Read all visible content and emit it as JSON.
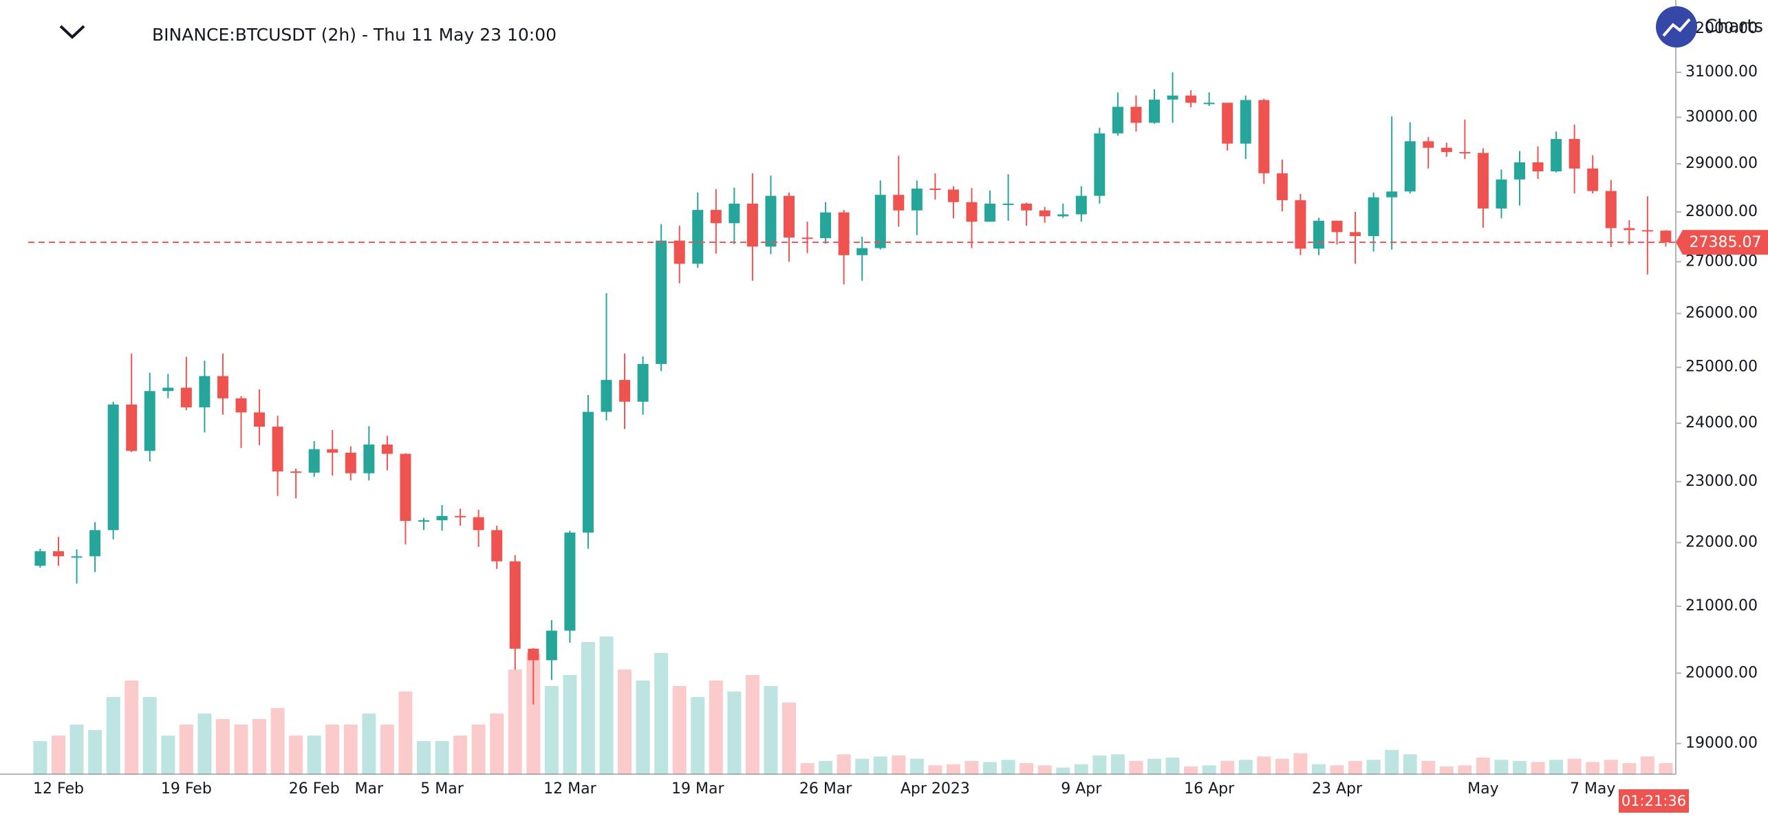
{
  "chart_data": {
    "type": "candlestick",
    "title": "BINANCE:BTCUSDT (2h) - Thu 11 May 23 10:00",
    "logo_text": "Charts",
    "countdown": "01:21:36",
    "last_price": 27385.07,
    "up_color": "#26a69a",
    "down_color": "#ef5350",
    "log_scale": true,
    "grid": false,
    "ylim": [
      18580,
      32680
    ],
    "yticks": [
      {
        "value": 19000,
        "label": "19000.00"
      },
      {
        "value": 20000,
        "label": "20000.00"
      },
      {
        "value": 21000,
        "label": "21000.00"
      },
      {
        "value": 22000,
        "label": "22000.00"
      },
      {
        "value": 23000,
        "label": "23000.00"
      },
      {
        "value": 24000,
        "label": "24000.00"
      },
      {
        "value": 25000,
        "label": "25000.00"
      },
      {
        "value": 26000,
        "label": "26000.00"
      },
      {
        "value": 27000,
        "label": "27000.00"
      },
      {
        "value": 28000,
        "label": "28000.00"
      },
      {
        "value": 29000,
        "label": "29000.00"
      },
      {
        "value": 30000,
        "label": "30000.00"
      },
      {
        "value": 31000,
        "label": "31000.00"
      },
      {
        "value": 32000,
        "label": "32000.00"
      }
    ],
    "categories": [
      null,
      "12 Feb",
      null,
      null,
      null,
      null,
      null,
      null,
      "19 Feb",
      null,
      null,
      null,
      null,
      null,
      null,
      "26 Feb",
      null,
      null,
      "Mar",
      null,
      null,
      null,
      "5 Mar",
      null,
      null,
      null,
      null,
      null,
      null,
      "12 Mar",
      null,
      null,
      null,
      null,
      null,
      null,
      "19 Mar",
      null,
      null,
      null,
      null,
      null,
      null,
      "26 Mar",
      null,
      null,
      null,
      null,
      null,
      "Apr 2023",
      null,
      null,
      null,
      null,
      null,
      null,
      null,
      "9 Apr",
      null,
      null,
      null,
      null,
      null,
      null,
      "16 Apr",
      null,
      null,
      null,
      null,
      null,
      null,
      "23 Apr",
      null,
      null,
      null,
      null,
      null,
      null,
      null,
      "May",
      null,
      null,
      null,
      null,
      null,
      "7 May",
      null,
      null,
      null,
      null
    ],
    "open": [
      21630,
      21860,
      21780,
      21780,
      22200,
      24330,
      23520,
      24570,
      24630,
      24280,
      24840,
      24440,
      24190,
      23940,
      23170,
      23150,
      23550,
      23490,
      23140,
      23630,
      23470,
      22350,
      22360,
      22430,
      22410,
      22200,
      21700,
      20360,
      20190,
      20630,
      22160,
      24200,
      24770,
      24380,
      25060,
      27420,
      26960,
      28040,
      27770,
      28170,
      27300,
      28330,
      27480,
      27470,
      27990,
      27130,
      27270,
      28350,
      28030,
      28480,
      28460,
      28200,
      27800,
      28170,
      28170,
      28030,
      27910,
      27950,
      28330,
      29650,
      30230,
      29880,
      30390,
      30480,
      30320,
      30320,
      29430,
      30380,
      28800,
      28240,
      27260,
      27820,
      27590,
      27510,
      28300,
      28420,
      29480,
      29340,
      29250,
      29230,
      28070,
      28670,
      29030,
      28840,
      29530,
      28900,
      28430,
      27670,
      27630,
      27620
    ],
    "high": [
      21900,
      22090,
      21890,
      22330,
      24380,
      25250,
      24900,
      24880,
      25190,
      25120,
      25250,
      24480,
      24600,
      24130,
      23220,
      23690,
      23880,
      23600,
      23950,
      23780,
      23480,
      22400,
      22610,
      22550,
      22530,
      22270,
      21800,
      20370,
      20790,
      22190,
      24500,
      26390,
      25250,
      25200,
      27750,
      27720,
      28400,
      28470,
      28500,
      28800,
      28750,
      28400,
      27800,
      28200,
      28040,
      27500,
      28650,
      29170,
      28650,
      28800,
      28530,
      28490,
      28440,
      28780,
      28190,
      28100,
      28170,
      28530,
      29770,
      30550,
      30480,
      30620,
      31000,
      30600,
      30550,
      30320,
      30480,
      30410,
      29090,
      28370,
      27880,
      27820,
      28000,
      28400,
      30020,
      29890,
      29570,
      29450,
      29950,
      29330,
      28880,
      29270,
      29370,
      29690,
      29840,
      29180,
      28660,
      27830,
      28320,
      27630
    ],
    "low": [
      21600,
      21630,
      21350,
      21530,
      22050,
      23500,
      23340,
      24440,
      24230,
      23840,
      24150,
      23570,
      23620,
      22760,
      22720,
      23080,
      23100,
      23020,
      23020,
      23190,
      21970,
      22200,
      22190,
      22270,
      21930,
      21580,
      20050,
      19550,
      19900,
      20450,
      21900,
      24050,
      23900,
      24150,
      24930,
      26580,
      26880,
      27160,
      27350,
      26630,
      27150,
      27000,
      27170,
      27360,
      26560,
      26630,
      27240,
      27700,
      27530,
      28250,
      27870,
      27270,
      27800,
      27820,
      27720,
      27780,
      27880,
      27800,
      28170,
      29600,
      29690,
      29860,
      29880,
      30220,
      30250,
      29280,
      29100,
      28580,
      28010,
      27130,
      27130,
      27340,
      26960,
      27200,
      27240,
      28380,
      28900,
      29150,
      29100,
      27680,
      27870,
      28130,
      28680,
      28820,
      28380,
      28380,
      27290,
      27340,
      26750,
      27300
    ],
    "close": [
      21860,
      21780,
      21780,
      22200,
      24330,
      23520,
      24570,
      24630,
      24280,
      24840,
      24440,
      24190,
      23940,
      23170,
      23150,
      23550,
      23490,
      23140,
      23630,
      23470,
      22350,
      22360,
      22430,
      22410,
      22200,
      21700,
      20360,
      20190,
      20630,
      22160,
      24200,
      24770,
      24380,
      25060,
      27420,
      26960,
      28040,
      27770,
      28170,
      27300,
      28330,
      27480,
      27470,
      27990,
      27130,
      27270,
      28350,
      28030,
      28480,
      28460,
      28200,
      27800,
      28170,
      28170,
      28030,
      27910,
      27950,
      28330,
      29650,
      30230,
      29880,
      30390,
      30480,
      30320,
      30320,
      29430,
      30380,
      28800,
      28240,
      27260,
      27820,
      27590,
      27510,
      28300,
      28420,
      29480,
      29340,
      29250,
      29230,
      28070,
      28670,
      29030,
      28840,
      29530,
      28900,
      28430,
      27670,
      27630,
      27620,
      27385.07
    ],
    "volume": [
      30,
      35,
      45,
      40,
      70,
      85,
      70,
      35,
      45,
      55,
      50,
      45,
      50,
      60,
      35,
      35,
      45,
      45,
      55,
      45,
      75,
      30,
      30,
      35,
      45,
      55,
      95,
      110,
      80,
      90,
      120,
      125,
      95,
      85,
      110,
      80,
      70,
      85,
      75,
      90,
      80,
      65,
      10,
      12,
      18,
      14,
      16,
      17,
      14,
      8,
      9,
      12,
      11,
      13,
      10,
      8,
      6,
      9,
      17,
      18,
      12,
      14,
      15,
      7,
      8,
      12,
      13,
      16,
      14,
      19,
      9,
      8,
      12,
      13,
      22,
      18,
      12,
      7,
      8,
      15,
      13,
      12,
      11,
      13,
      14,
      11,
      13,
      10,
      16,
      10
    ]
  }
}
